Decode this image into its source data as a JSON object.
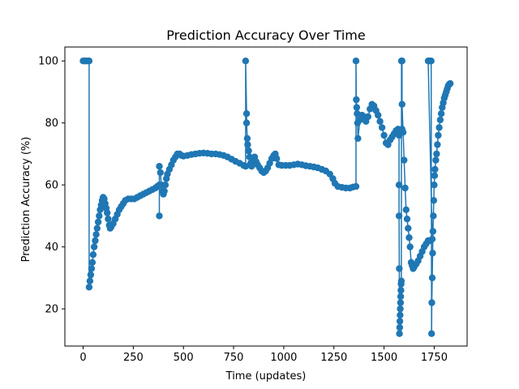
{
  "chart_data": {
    "type": "line",
    "title": "Prediction Accuracy Over Time",
    "xlabel": "Time (updates)",
    "ylabel": "Prediction Accuracy (%)",
    "xlim": [
      -91,
      1914
    ],
    "ylim": [
      8,
      104.5
    ],
    "xticks": [
      0,
      250,
      500,
      750,
      1000,
      1250,
      1500,
      1750
    ],
    "yticks": [
      20,
      40,
      60,
      80,
      100
    ],
    "grid": false,
    "legend": "none",
    "color": "#1f77b4",
    "series": [
      {
        "marker": "circle",
        "points": [
          [
            0,
            100
          ],
          [
            8,
            100
          ],
          [
            15,
            100
          ],
          [
            22,
            100
          ],
          [
            30,
            100
          ],
          [
            30,
            27
          ],
          [
            34,
            29
          ],
          [
            38,
            31
          ],
          [
            42,
            33
          ],
          [
            46,
            35
          ],
          [
            50,
            37.5
          ],
          [
            55,
            40
          ],
          [
            60,
            42
          ],
          [
            65,
            44
          ],
          [
            70,
            46
          ],
          [
            75,
            48
          ],
          [
            80,
            50
          ],
          [
            85,
            52
          ],
          [
            90,
            53.5
          ],
          [
            95,
            55
          ],
          [
            100,
            56
          ],
          [
            105,
            55.5
          ],
          [
            110,
            54
          ],
          [
            115,
            52.5
          ],
          [
            120,
            51
          ],
          [
            125,
            49
          ],
          [
            130,
            47
          ],
          [
            135,
            46
          ],
          [
            140,
            46.5
          ],
          [
            150,
            47.5
          ],
          [
            160,
            49
          ],
          [
            170,
            50.5
          ],
          [
            180,
            52
          ],
          [
            190,
            53
          ],
          [
            200,
            54
          ],
          [
            210,
            55
          ],
          [
            225,
            55.5
          ],
          [
            240,
            55.5
          ],
          [
            255,
            55.5
          ],
          [
            270,
            56
          ],
          [
            285,
            56.5
          ],
          [
            300,
            57
          ],
          [
            315,
            57.5
          ],
          [
            330,
            58
          ],
          [
            345,
            58.5
          ],
          [
            360,
            59
          ],
          [
            370,
            59.5
          ],
          [
            380,
            60
          ],
          [
            380,
            50
          ],
          [
            380,
            66
          ],
          [
            385,
            64
          ],
          [
            390,
            60
          ],
          [
            395,
            58
          ],
          [
            400,
            57
          ],
          [
            405,
            58
          ],
          [
            410,
            60
          ],
          [
            415,
            62
          ],
          [
            420,
            63.5
          ],
          [
            430,
            65
          ],
          [
            440,
            66.5
          ],
          [
            450,
            68
          ],
          [
            460,
            69
          ],
          [
            470,
            70
          ],
          [
            480,
            70
          ],
          [
            490,
            69.5
          ],
          [
            500,
            69.3
          ],
          [
            520,
            69.5
          ],
          [
            540,
            69.8
          ],
          [
            560,
            70
          ],
          [
            580,
            70.2
          ],
          [
            600,
            70.3
          ],
          [
            620,
            70.2
          ],
          [
            640,
            70
          ],
          [
            660,
            70
          ],
          [
            680,
            69.8
          ],
          [
            700,
            69.5
          ],
          [
            720,
            69
          ],
          [
            740,
            68.3
          ],
          [
            760,
            67.6
          ],
          [
            780,
            67
          ],
          [
            800,
            66.3
          ],
          [
            810,
            66
          ],
          [
            810,
            100
          ],
          [
            815,
            83
          ],
          [
            815,
            80
          ],
          [
            818,
            75
          ],
          [
            820,
            73
          ],
          [
            825,
            71
          ],
          [
            830,
            69
          ],
          [
            835,
            67
          ],
          [
            840,
            66
          ],
          [
            848,
            68
          ],
          [
            855,
            69
          ],
          [
            862,
            67.5
          ],
          [
            870,
            66.5
          ],
          [
            880,
            65.5
          ],
          [
            890,
            64.5
          ],
          [
            900,
            64
          ],
          [
            910,
            64.5
          ],
          [
            920,
            65.5
          ],
          [
            930,
            67
          ],
          [
            940,
            68.5
          ],
          [
            950,
            69.5
          ],
          [
            958,
            70
          ],
          [
            965,
            68.5
          ],
          [
            975,
            66.5
          ],
          [
            990,
            66.3
          ],
          [
            1010,
            66.3
          ],
          [
            1030,
            66.3
          ],
          [
            1050,
            66.5
          ],
          [
            1070,
            66.7
          ],
          [
            1090,
            66.5
          ],
          [
            1110,
            66.2
          ],
          [
            1130,
            66
          ],
          [
            1150,
            65.8
          ],
          [
            1170,
            65.5
          ],
          [
            1190,
            65
          ],
          [
            1210,
            64.5
          ],
          [
            1230,
            63.5
          ],
          [
            1245,
            62
          ],
          [
            1255,
            60.5
          ],
          [
            1270,
            59.5
          ],
          [
            1290,
            59.2
          ],
          [
            1310,
            59
          ],
          [
            1330,
            59
          ],
          [
            1345,
            59.3
          ],
          [
            1360,
            59.5
          ],
          [
            1360,
            100
          ],
          [
            1362,
            87.5
          ],
          [
            1364,
            85
          ],
          [
            1366,
            83
          ],
          [
            1368,
            80
          ],
          [
            1370,
            75
          ],
          [
            1380,
            81
          ],
          [
            1390,
            82.5
          ],
          [
            1400,
            82
          ],
          [
            1410,
            80.5
          ],
          [
            1420,
            82
          ],
          [
            1430,
            84.5
          ],
          [
            1440,
            86
          ],
          [
            1450,
            85.5
          ],
          [
            1460,
            84
          ],
          [
            1470,
            82.5
          ],
          [
            1480,
            80.5
          ],
          [
            1490,
            78.5
          ],
          [
            1500,
            76
          ],
          [
            1510,
            73.5
          ],
          [
            1520,
            73
          ],
          [
            1530,
            74.5
          ],
          [
            1540,
            75.5
          ],
          [
            1550,
            76.5
          ],
          [
            1560,
            77.5
          ],
          [
            1570,
            78
          ],
          [
            1575,
            76
          ],
          [
            1575,
            60
          ],
          [
            1575,
            50
          ],
          [
            1576,
            33
          ],
          [
            1577,
            12
          ],
          [
            1578,
            14
          ],
          [
            1579,
            16
          ],
          [
            1580,
            18
          ],
          [
            1581,
            20
          ],
          [
            1582,
            22
          ],
          [
            1583,
            24
          ],
          [
            1584,
            26
          ],
          [
            1585,
            28
          ],
          [
            1586,
            29
          ],
          [
            1587,
            100
          ],
          [
            1588,
            100
          ],
          [
            1590,
            100
          ],
          [
            1590,
            78
          ],
          [
            1590,
            86
          ],
          [
            1595,
            77
          ],
          [
            1600,
            68
          ],
          [
            1605,
            59
          ],
          [
            1610,
            52
          ],
          [
            1615,
            49
          ],
          [
            1620,
            46
          ],
          [
            1625,
            43
          ],
          [
            1630,
            40
          ],
          [
            1635,
            35
          ],
          [
            1640,
            34
          ],
          [
            1645,
            33
          ],
          [
            1650,
            33.5
          ],
          [
            1660,
            34.5
          ],
          [
            1670,
            35.5
          ],
          [
            1680,
            37
          ],
          [
            1690,
            38.5
          ],
          [
            1700,
            40
          ],
          [
            1710,
            41
          ],
          [
            1720,
            42
          ],
          [
            1730,
            42
          ],
          [
            1740,
            42.5
          ],
          [
            1720,
            100
          ],
          [
            1725,
            100
          ],
          [
            1730,
            100
          ],
          [
            1735,
            100
          ],
          [
            1737,
            12
          ],
          [
            1738,
            22
          ],
          [
            1740,
            30
          ],
          [
            1742,
            38
          ],
          [
            1744,
            45
          ],
          [
            1746,
            50
          ],
          [
            1748,
            55
          ],
          [
            1750,
            60
          ],
          [
            1752,
            63
          ],
          [
            1754,
            65
          ],
          [
            1758,
            68
          ],
          [
            1762,
            70
          ],
          [
            1766,
            73
          ],
          [
            1770,
            76
          ],
          [
            1775,
            78.5
          ],
          [
            1780,
            81
          ],
          [
            1785,
            83
          ],
          [
            1790,
            85
          ],
          [
            1795,
            86.5
          ],
          [
            1800,
            88
          ],
          [
            1805,
            89
          ],
          [
            1810,
            90
          ],
          [
            1815,
            91
          ],
          [
            1820,
            92
          ],
          [
            1825,
            92.5
          ],
          [
            1830,
            92.7
          ]
        ]
      }
    ]
  }
}
